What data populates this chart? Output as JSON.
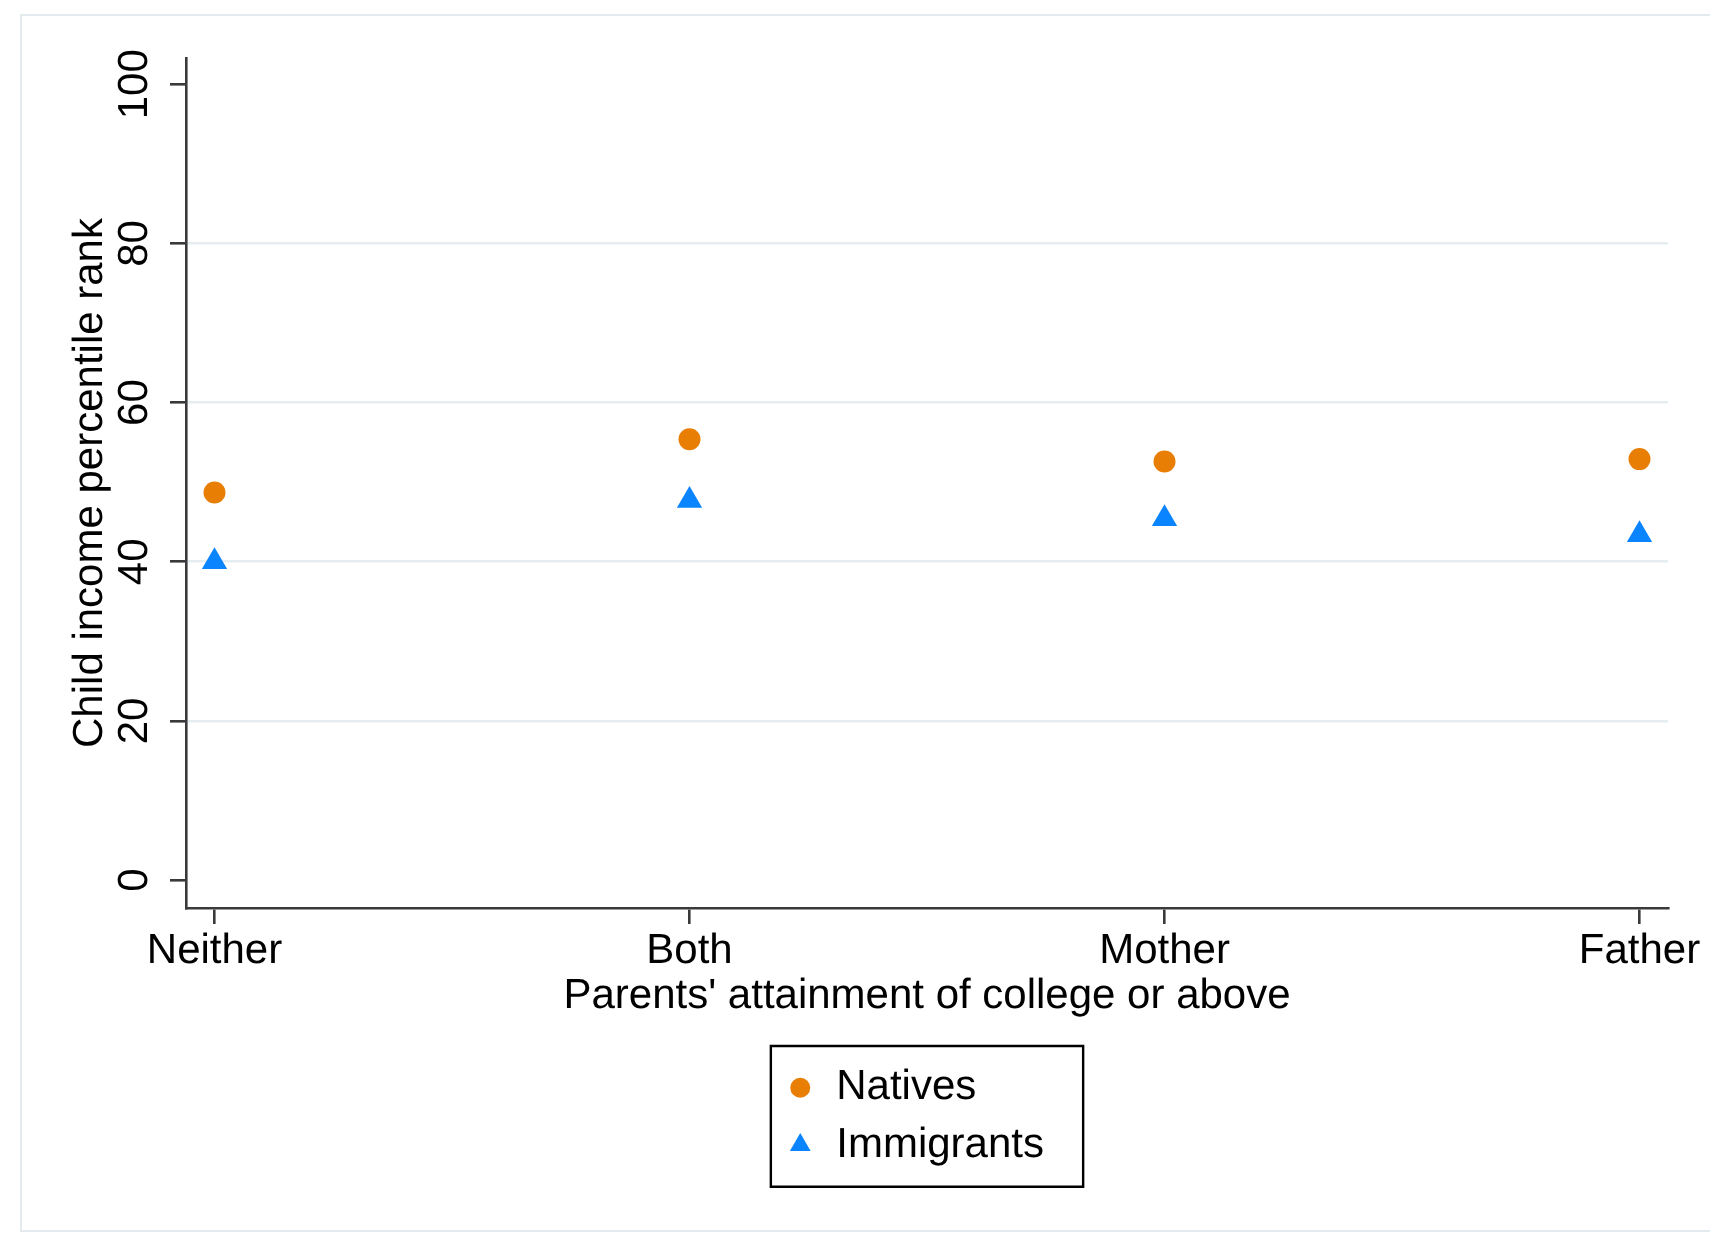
{
  "chart_data": {
    "type": "scatter",
    "xlabel": "Parents' attainment of college or above",
    "ylabel": "Child income percentile rank",
    "categories": [
      "Neither",
      "Both",
      "Mother",
      "Father"
    ],
    "series": [
      {
        "name": "Natives",
        "color": "#e87e04",
        "marker": "circle",
        "values": [
          48.7,
          55.4,
          52.6,
          52.9
        ]
      },
      {
        "name": "Immigrants",
        "color": "#0a84ff",
        "marker": "triangle",
        "values": [
          40.0,
          47.7,
          45.4,
          43.4
        ]
      }
    ],
    "ylim": [
      -3.5,
      103.3
    ],
    "yticks": [
      0,
      20,
      40,
      60,
      80,
      100
    ],
    "grid": "y",
    "legend": "bottom"
  }
}
